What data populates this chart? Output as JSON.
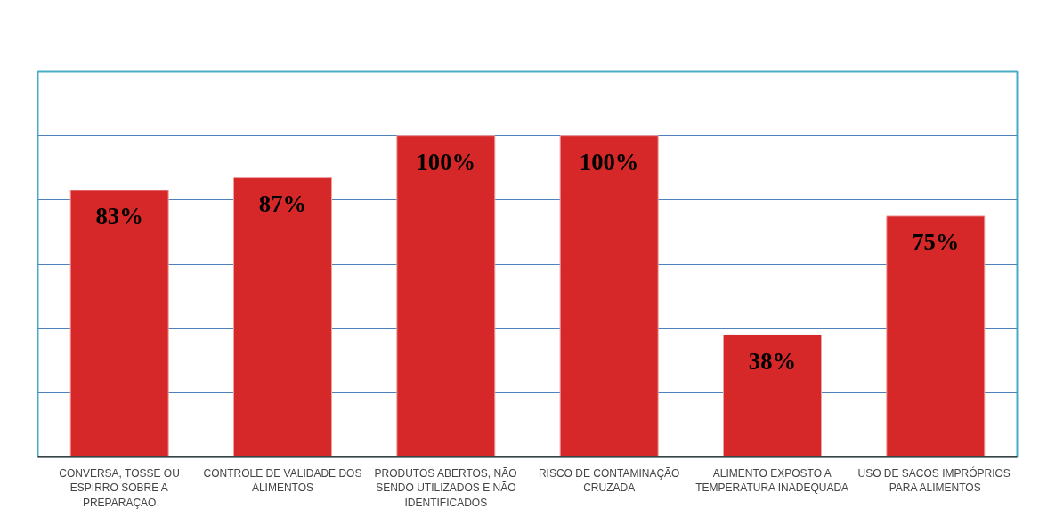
{
  "chart_data": {
    "type": "bar",
    "categories": [
      "CONVERSA, TOSSE OU\nESPIRRO SOBRE A\nPREPARAÇÃO",
      "CONTROLE DE VALIDADE DOS\nALIMENTOS",
      "PRODUTOS ABERTOS, NÃO\nSENDO UTILIZADOS E NÃO\nIDENTIFICADOS",
      "RISCO DE CONTAMINAÇÃO\nCRUZADA",
      "ALIMENTO EXPOSTO A\nTEMPERATURA INADEQUADA",
      "USO DE SACOS  IMPRÓPRIOS\nPARA ALIMENTOS"
    ],
    "values": [
      83,
      87,
      100,
      100,
      38,
      75
    ],
    "value_labels": [
      "83%",
      "87%",
      "100%",
      "100%",
      "38%",
      "75%"
    ],
    "color": "#d62828",
    "ylim": [
      0,
      120
    ],
    "yticks": [
      {
        "value": 0,
        "label": null
      },
      {
        "value": 20,
        "label": null
      },
      {
        "value": 40,
        "label": null
      },
      {
        "value": 60,
        "label": null
      },
      {
        "value": 80,
        "label": null
      },
      {
        "value": 100,
        "label": null
      },
      {
        "value": 120,
        "label": null
      }
    ],
    "tick_labels": "x",
    "grid": "y"
  }
}
